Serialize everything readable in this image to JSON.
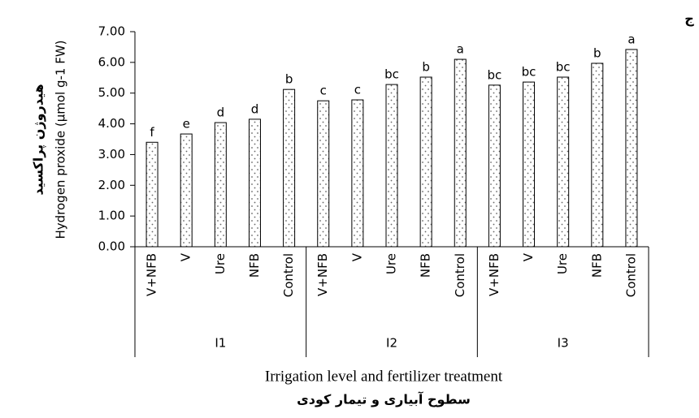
{
  "chart_data": {
    "type": "bar",
    "corner_label": "ج",
    "y_title_lines": [
      "هیدروژن پراکسید",
      "Hydrogen proxide (µmol g-1 FW)"
    ],
    "x_title": "Irrigation level and fertilizer treatment",
    "x_title_fa": "سطوح آبیاری و تیمار کودی",
    "groups": [
      "I1",
      "I2",
      "I3"
    ],
    "categories": [
      "V+NFB",
      "V",
      "Ure",
      "NFB",
      "Control",
      "V+NFB",
      "V",
      "Ure",
      "NFB",
      "Control",
      "V+NFB",
      "V",
      "Ure",
      "NFB",
      "Control"
    ],
    "values": [
      3.4,
      3.67,
      4.04,
      4.15,
      5.12,
      4.75,
      4.78,
      5.28,
      5.52,
      6.1,
      5.26,
      5.36,
      5.52,
      5.97,
      6.42
    ],
    "letters": [
      "f",
      "e",
      "d",
      "d",
      "b",
      "c",
      "c",
      "bc",
      "b",
      "a",
      "bc",
      "bc",
      "bc",
      "b",
      "a"
    ],
    "color": "#ffffff",
    "ylim": [
      0,
      7
    ],
    "yticks": [
      {
        "value": 0,
        "label": "0.00"
      },
      {
        "value": 1,
        "label": "1.00"
      },
      {
        "value": 2,
        "label": "2.00"
      },
      {
        "value": 3,
        "label": "3.00"
      },
      {
        "value": 4,
        "label": "4.00"
      },
      {
        "value": 5,
        "label": "5.00"
      },
      {
        "value": 6,
        "label": "6.00"
      },
      {
        "value": 7,
        "label": "7.00"
      }
    ],
    "grid": false
  }
}
